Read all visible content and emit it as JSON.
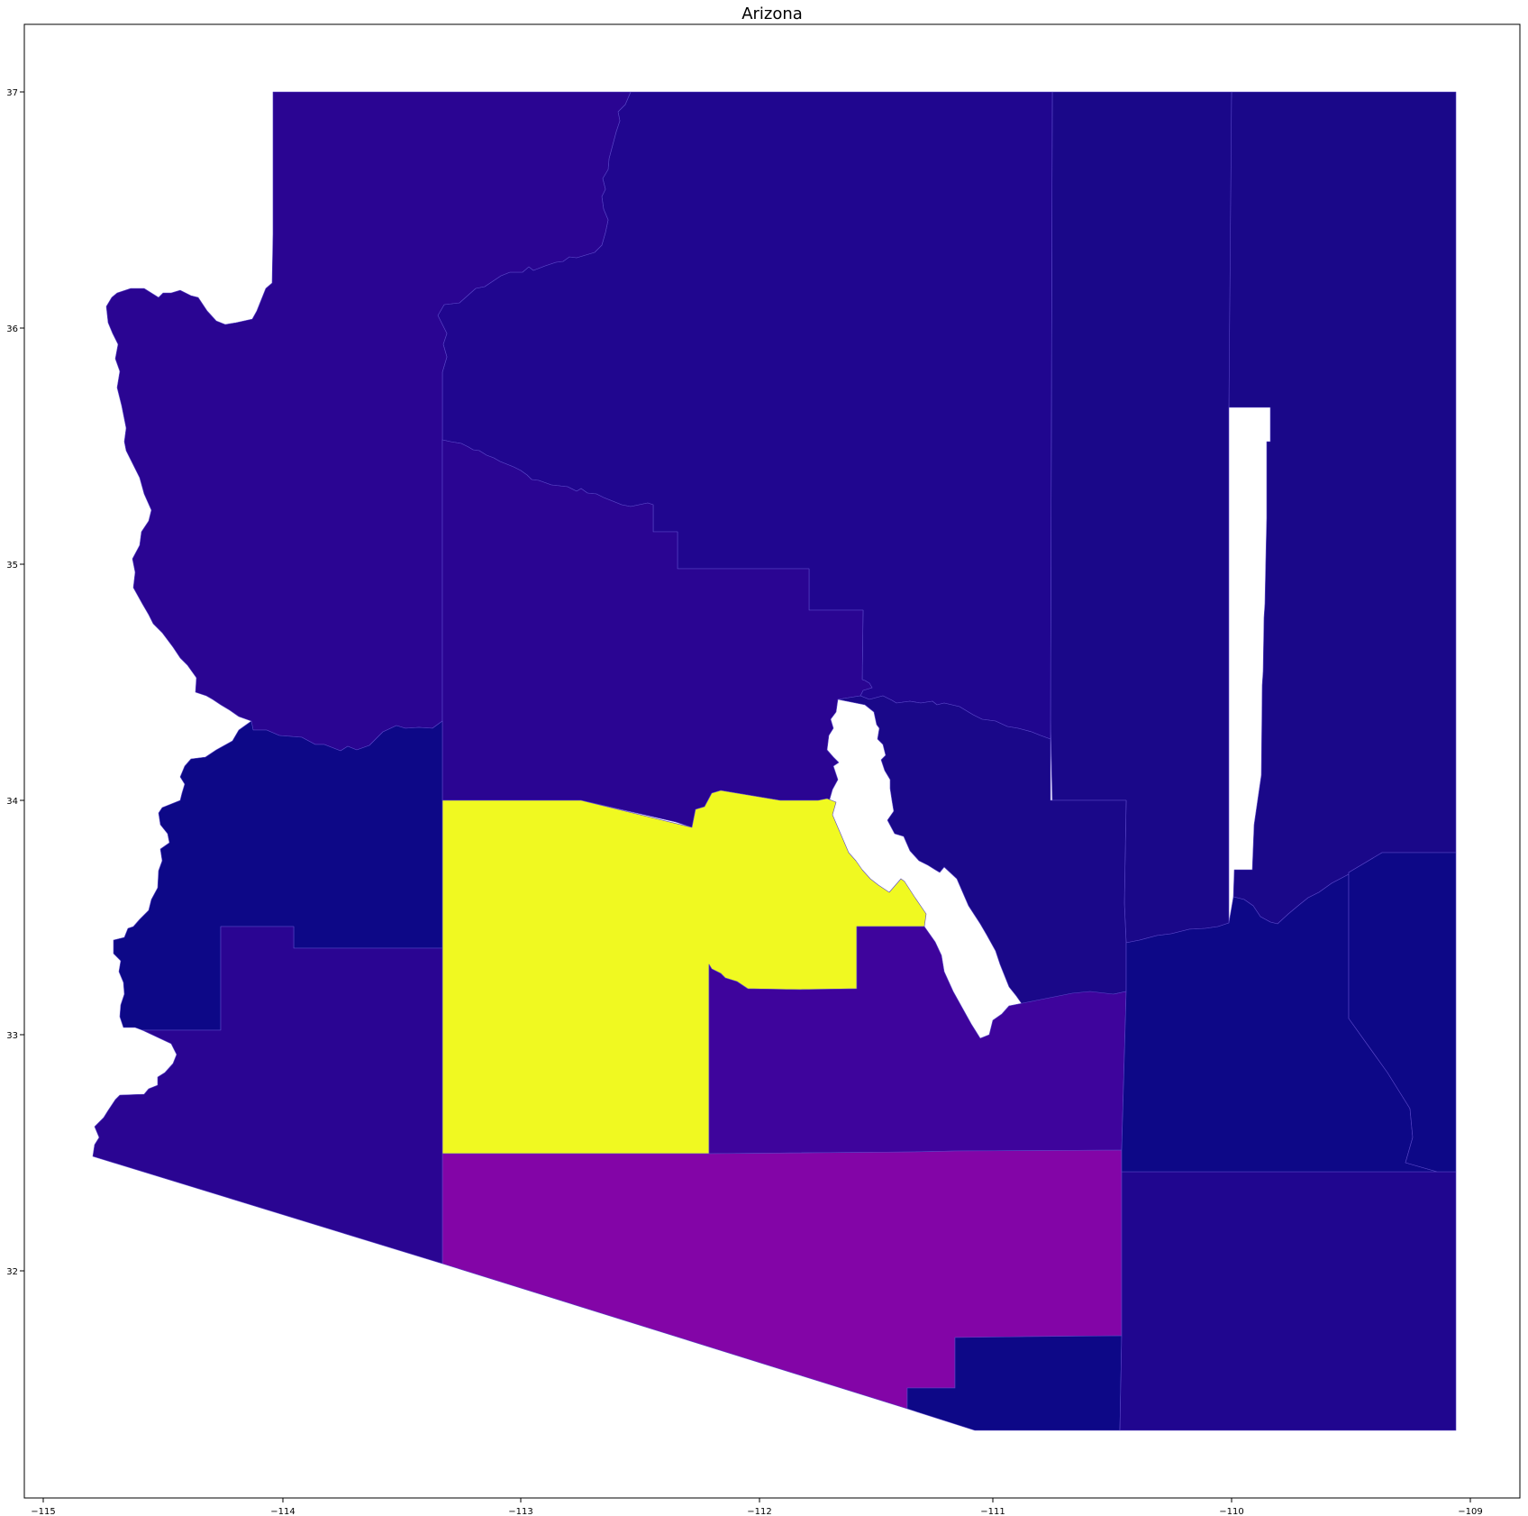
{
  "title": "Arizona",
  "map": {
    "x_ticks": [
      "−115",
      "−114",
      "−113",
      "−112",
      "−111",
      "−110",
      "−109"
    ],
    "y_ticks": [
      "32",
      "33",
      "34",
      "35",
      "36",
      "37"
    ],
    "colors": {
      "darkest": "#0d0887",
      "dark": "#1a0889",
      "indigo": "#20068f",
      "violet": "#2a0592",
      "purple": "#3e049c",
      "magenta": "#8305a7",
      "yellow": "#f0f921"
    }
  }
}
